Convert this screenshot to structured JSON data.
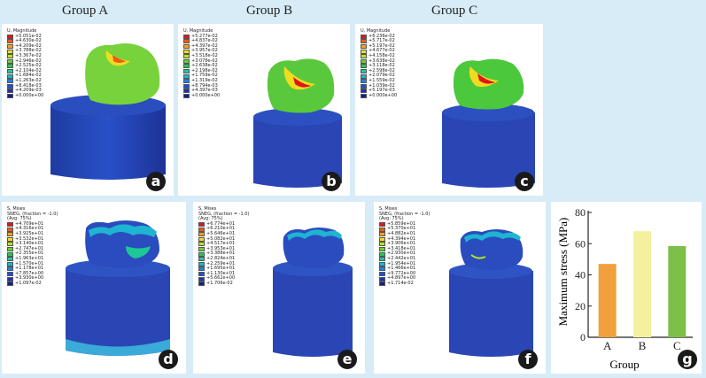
{
  "group_titles": [
    "Group A",
    "Group  B",
    "Group C"
  ],
  "top_panels": [
    {
      "label": "a",
      "legend_title": "U, Magnitude",
      "values": [
        "+5.051e-02",
        "+4.630e-02",
        "+4.209e-02",
        "+3.788e-02",
        "+3.367e-02",
        "+2.946e-02",
        "+2.525e-02",
        "+2.104e-02",
        "+1.684e-02",
        "+1.263e-02",
        "+8.418e-03",
        "+4.209e-03",
        "+0.000e+00"
      ]
    },
    {
      "label": "b",
      "legend_title": "U, Magnitude",
      "values": [
        "+5.277e-02",
        "+4.837e-02",
        "+4.397e-02",
        "+3.957e-02",
        "+3.518e-02",
        "+3.078e-02",
        "+2.638e-02",
        "+2.198e-02",
        "+1.759e-02",
        "+1.319e-02",
        "+8.794e-03",
        "+4.397e-03",
        "+0.000e+00"
      ]
    },
    {
      "label": "c",
      "legend_title": "U, Magnitude",
      "values": [
        "+6.236e-02",
        "+5.717e-02",
        "+5.197e-02",
        "+4.677e-02",
        "+4.158e-02",
        "+3.638e-02",
        "+3.118e-02",
        "+2.598e-02",
        "+2.079e-02",
        "+1.559e-02",
        "+1.039e-02",
        "+5.197e-03",
        "+0.000e+00"
      ]
    }
  ],
  "bottom_panels": [
    {
      "label": "d",
      "legend_lines": [
        "S, Mises",
        "SNEG, (fraction = -1.0)",
        "(Avg: 75%)"
      ],
      "values": [
        "+4.709e+01",
        "+4.316e+01",
        "+3.925e+01",
        "+3.532e+01",
        "+3.140e+01",
        "+2.747e+01",
        "+2.355e+01",
        "+1.963e+01",
        "+1.570e+01",
        "+1.178e+01",
        "+7.857e+00",
        "+3.930e+00",
        "+1.097e-02"
      ]
    },
    {
      "label": "e",
      "legend_lines": [
        "S, Mises",
        "SNEG, (fraction = -1.0)",
        "(Avg: 75%)"
      ],
      "values": [
        "+6.774e+01",
        "+6.210e+01",
        "+5.646e+01",
        "+5.082e+01",
        "+4.517e+01",
        "+3.953e+01",
        "+3.388e+01",
        "+2.824e+01",
        "+2.259e+01",
        "+1.695e+01",
        "+1.130e+01",
        "+5.662e+00",
        "+1.706e-02"
      ]
    },
    {
      "label": "f",
      "legend_lines": [
        "S, Mises",
        "SNEG, (fraction = -1.0)",
        "(Avg: 75%)"
      ],
      "values": [
        "+5.859e+01",
        "+5.370e+01",
        "+4.882e+01",
        "+4.394e+01",
        "+3.906e+01",
        "+3.418e+01",
        "+2.930e+01",
        "+2.442e+01",
        "+1.954e+01",
        "+1.466e+01",
        "+9.772e+00",
        "+4.897e+00",
        "+1.714e-02"
      ]
    }
  ],
  "legend_colors": [
    "#e0141e",
    "#f05a14",
    "#f5a01e",
    "#f0dc1e",
    "#b4e61e",
    "#64d232",
    "#28c850",
    "#1ec896",
    "#1eb4d2",
    "#1e82e6",
    "#1e50d2",
    "#1e32b4",
    "#141e8c"
  ],
  "chart_label": "g",
  "chart_data": {
    "type": "bar",
    "categories": [
      "A",
      "B",
      "C"
    ],
    "values": [
      47,
      68,
      58.5
    ],
    "colors": [
      "#f0a03c",
      "#f5f0a0",
      "#7cc04a"
    ],
    "xlabel": "Group",
    "ylabel": "Maximum stress (MPa)",
    "ylim": [
      0,
      80
    ],
    "yticks": [
      "0",
      "20",
      "40",
      "60",
      "80"
    ]
  }
}
